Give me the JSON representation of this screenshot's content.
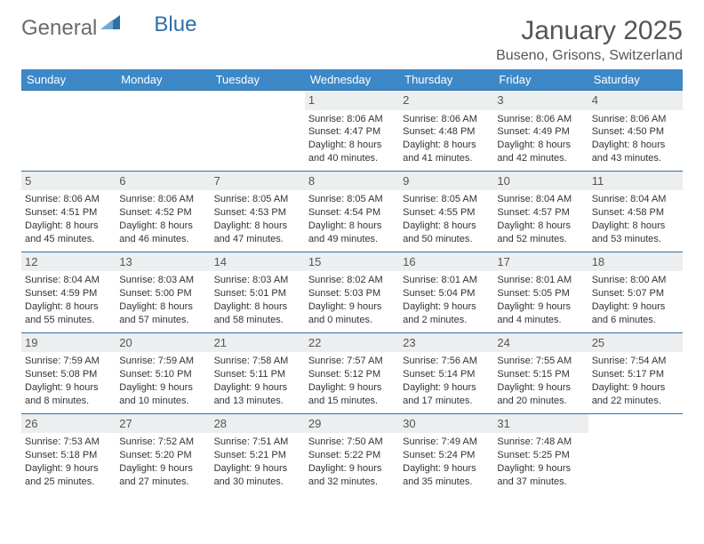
{
  "logo": {
    "part1": "General",
    "part2": "Blue"
  },
  "title": {
    "month": "January 2025",
    "location": "Buseno, Grisons, Switzerland"
  },
  "colors": {
    "header_bg": "#3d88c7",
    "header_text": "#ffffff",
    "rule": "#2f6fa8",
    "daynum_bg": "#eceeef",
    "text": "#333333",
    "logo_gray": "#6b6b6b",
    "logo_blue": "#2f6fa8"
  },
  "day_names": [
    "Sunday",
    "Monday",
    "Tuesday",
    "Wednesday",
    "Thursday",
    "Friday",
    "Saturday"
  ],
  "weeks": [
    [
      null,
      null,
      null,
      {
        "n": "1",
        "sr": "8:06 AM",
        "ss": "4:47 PM",
        "dl": "8 hours and 40 minutes."
      },
      {
        "n": "2",
        "sr": "8:06 AM",
        "ss": "4:48 PM",
        "dl": "8 hours and 41 minutes."
      },
      {
        "n": "3",
        "sr": "8:06 AM",
        "ss": "4:49 PM",
        "dl": "8 hours and 42 minutes."
      },
      {
        "n": "4",
        "sr": "8:06 AM",
        "ss": "4:50 PM",
        "dl": "8 hours and 43 minutes."
      }
    ],
    [
      {
        "n": "5",
        "sr": "8:06 AM",
        "ss": "4:51 PM",
        "dl": "8 hours and 45 minutes."
      },
      {
        "n": "6",
        "sr": "8:06 AM",
        "ss": "4:52 PM",
        "dl": "8 hours and 46 minutes."
      },
      {
        "n": "7",
        "sr": "8:05 AM",
        "ss": "4:53 PM",
        "dl": "8 hours and 47 minutes."
      },
      {
        "n": "8",
        "sr": "8:05 AM",
        "ss": "4:54 PM",
        "dl": "8 hours and 49 minutes."
      },
      {
        "n": "9",
        "sr": "8:05 AM",
        "ss": "4:55 PM",
        "dl": "8 hours and 50 minutes."
      },
      {
        "n": "10",
        "sr": "8:04 AM",
        "ss": "4:57 PM",
        "dl": "8 hours and 52 minutes."
      },
      {
        "n": "11",
        "sr": "8:04 AM",
        "ss": "4:58 PM",
        "dl": "8 hours and 53 minutes."
      }
    ],
    [
      {
        "n": "12",
        "sr": "8:04 AM",
        "ss": "4:59 PM",
        "dl": "8 hours and 55 minutes."
      },
      {
        "n": "13",
        "sr": "8:03 AM",
        "ss": "5:00 PM",
        "dl": "8 hours and 57 minutes."
      },
      {
        "n": "14",
        "sr": "8:03 AM",
        "ss": "5:01 PM",
        "dl": "8 hours and 58 minutes."
      },
      {
        "n": "15",
        "sr": "8:02 AM",
        "ss": "5:03 PM",
        "dl": "9 hours and 0 minutes."
      },
      {
        "n": "16",
        "sr": "8:01 AM",
        "ss": "5:04 PM",
        "dl": "9 hours and 2 minutes."
      },
      {
        "n": "17",
        "sr": "8:01 AM",
        "ss": "5:05 PM",
        "dl": "9 hours and 4 minutes."
      },
      {
        "n": "18",
        "sr": "8:00 AM",
        "ss": "5:07 PM",
        "dl": "9 hours and 6 minutes."
      }
    ],
    [
      {
        "n": "19",
        "sr": "7:59 AM",
        "ss": "5:08 PM",
        "dl": "9 hours and 8 minutes."
      },
      {
        "n": "20",
        "sr": "7:59 AM",
        "ss": "5:10 PM",
        "dl": "9 hours and 10 minutes."
      },
      {
        "n": "21",
        "sr": "7:58 AM",
        "ss": "5:11 PM",
        "dl": "9 hours and 13 minutes."
      },
      {
        "n": "22",
        "sr": "7:57 AM",
        "ss": "5:12 PM",
        "dl": "9 hours and 15 minutes."
      },
      {
        "n": "23",
        "sr": "7:56 AM",
        "ss": "5:14 PM",
        "dl": "9 hours and 17 minutes."
      },
      {
        "n": "24",
        "sr": "7:55 AM",
        "ss": "5:15 PM",
        "dl": "9 hours and 20 minutes."
      },
      {
        "n": "25",
        "sr": "7:54 AM",
        "ss": "5:17 PM",
        "dl": "9 hours and 22 minutes."
      }
    ],
    [
      {
        "n": "26",
        "sr": "7:53 AM",
        "ss": "5:18 PM",
        "dl": "9 hours and 25 minutes."
      },
      {
        "n": "27",
        "sr": "7:52 AM",
        "ss": "5:20 PM",
        "dl": "9 hours and 27 minutes."
      },
      {
        "n": "28",
        "sr": "7:51 AM",
        "ss": "5:21 PM",
        "dl": "9 hours and 30 minutes."
      },
      {
        "n": "29",
        "sr": "7:50 AM",
        "ss": "5:22 PM",
        "dl": "9 hours and 32 minutes."
      },
      {
        "n": "30",
        "sr": "7:49 AM",
        "ss": "5:24 PM",
        "dl": "9 hours and 35 minutes."
      },
      {
        "n": "31",
        "sr": "7:48 AM",
        "ss": "5:25 PM",
        "dl": "9 hours and 37 minutes."
      },
      null
    ]
  ],
  "labels": {
    "sunrise": "Sunrise: ",
    "sunset": "Sunset: ",
    "daylight": "Daylight: "
  }
}
